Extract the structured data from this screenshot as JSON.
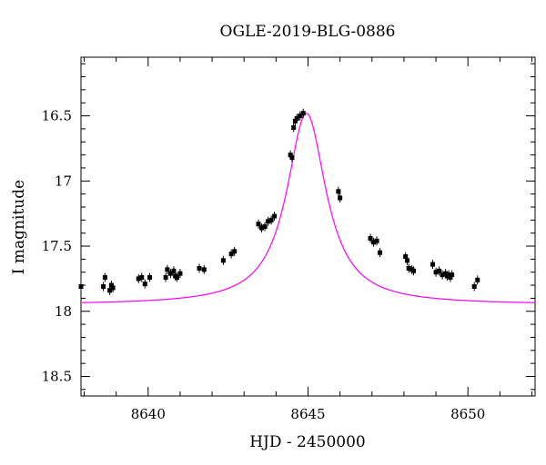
{
  "chart_data": {
    "type": "scatter",
    "title": "OGLE-2019-BLG-0886",
    "xlabel": "HJD - 2450000",
    "ylabel": "I magnitude",
    "xlim": [
      8637.9,
      8652.1
    ],
    "ylim": [
      18.65,
      16.05
    ],
    "y_inverted": true,
    "x_ticks": [
      8640,
      8645,
      8650
    ],
    "x_tick_labels": [
      "8640",
      "8645",
      "8650"
    ],
    "y_ticks": [
      16.5,
      17,
      17.5,
      18,
      18.5
    ],
    "y_tick_labels": [
      "16.5",
      "17",
      "17.5",
      "18",
      "18.5"
    ],
    "grid": false,
    "colors": {
      "points": "#000000",
      "model": "#ff00ff"
    },
    "series": [
      {
        "kind": "points",
        "x": [
          8637.9,
          8638.6,
          8638.65,
          8638.8,
          8638.85,
          8638.9,
          8639.7,
          8639.8,
          8639.9,
          8640.05,
          8640.55,
          8640.6,
          8640.7,
          8640.8,
          8640.85,
          8640.9,
          8641.0,
          8641.6,
          8641.75,
          8642.35,
          8642.6,
          8642.7,
          8643.45,
          8643.55,
          8643.65,
          8643.75,
          8643.85,
          8643.95,
          8644.45,
          8644.5,
          8644.55,
          8644.6,
          8644.65,
          8644.75,
          8644.85,
          8645.95,
          8646.0,
          8646.95,
          8647.05,
          8647.15,
          8647.25,
          8648.05,
          8648.1,
          8648.15,
          8648.25,
          8648.3,
          8648.9,
          8649.0,
          8649.1,
          8649.2,
          8649.3,
          8649.35,
          8649.4,
          8649.45,
          8649.5,
          8650.2,
          8650.3
        ],
        "y": [
          17.81,
          17.81,
          17.74,
          17.84,
          17.8,
          17.82,
          17.75,
          17.74,
          17.79,
          17.74,
          17.74,
          17.68,
          17.71,
          17.69,
          17.73,
          17.74,
          17.71,
          17.67,
          17.68,
          17.61,
          17.56,
          17.54,
          17.33,
          17.36,
          17.35,
          17.31,
          17.3,
          17.27,
          16.8,
          16.82,
          16.59,
          16.54,
          16.52,
          16.5,
          16.48,
          17.08,
          17.13,
          17.44,
          17.47,
          17.46,
          17.55,
          17.58,
          17.61,
          17.67,
          17.68,
          17.69,
          17.64,
          17.7,
          17.69,
          17.72,
          17.71,
          17.73,
          17.72,
          17.74,
          17.72,
          17.81,
          17.76
        ]
      },
      {
        "kind": "model",
        "peak_x": 8644.95,
        "peak_y": 16.48,
        "baseline_y": 17.95,
        "width": 0.75
      }
    ]
  }
}
